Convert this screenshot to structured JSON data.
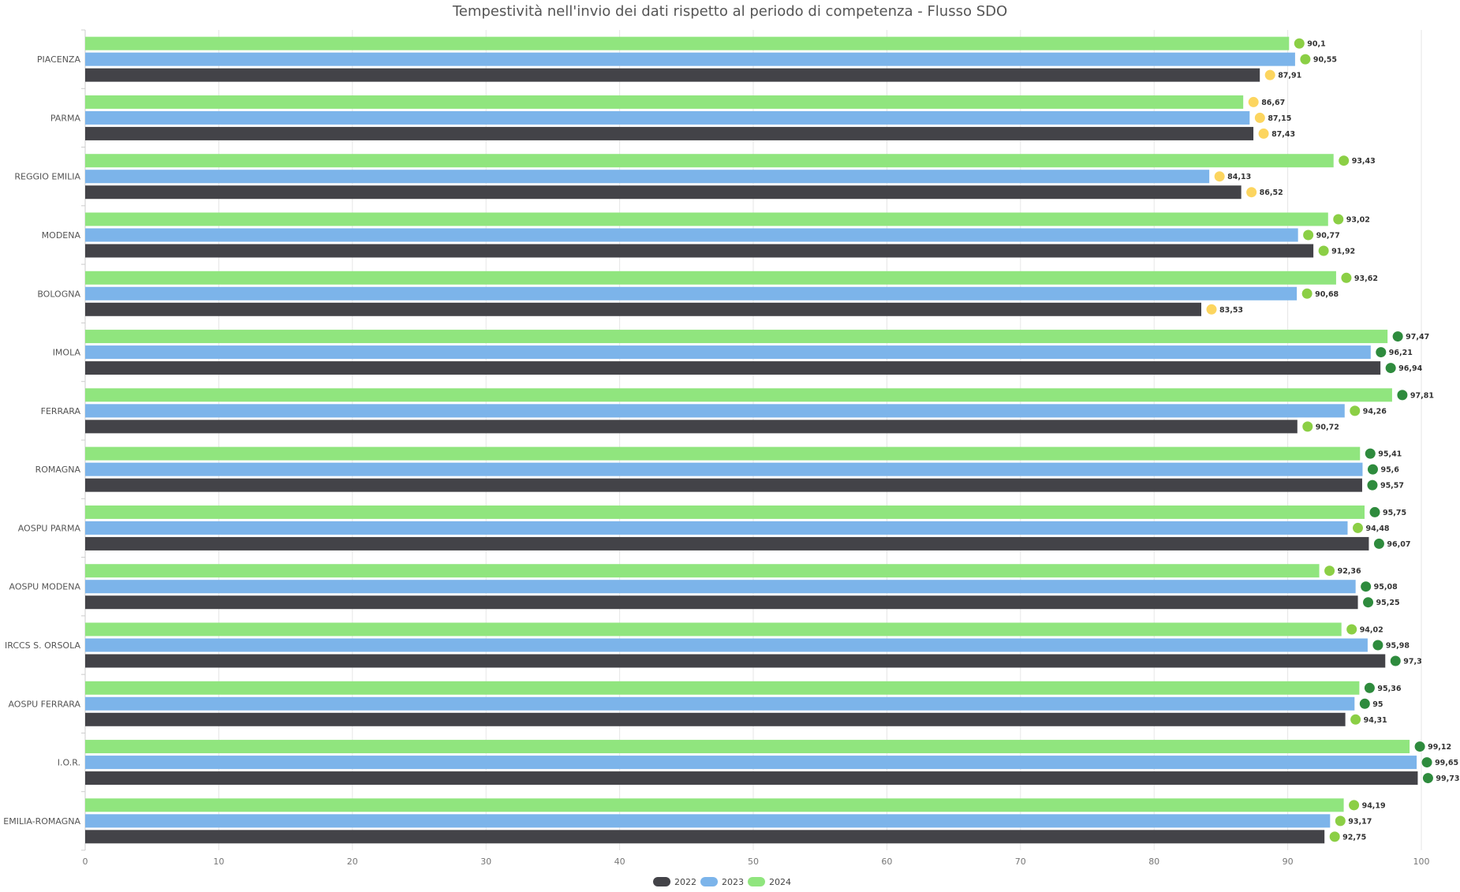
{
  "chart_data": {
    "type": "bar",
    "orientation": "horizontal",
    "title": "Tempestività nell'invio dei dati rispetto al periodo di competenza - Flusso SDO",
    "categories": [
      "PIACENZA",
      "PARMA",
      "REGGIO EMILIA",
      "MODENA",
      "BOLOGNA",
      "IMOLA",
      "FERRARA",
      "ROMAGNA",
      "AOSPU PARMA",
      "AOSPU MODENA",
      "IRCCS S. ORSOLA",
      "AOSPU FERRARA",
      "I.O.R.",
      "EMILIA-ROMAGNA"
    ],
    "series": [
      {
        "name": "2024",
        "color": "#90e57e",
        "values": [
          90.1,
          86.67,
          93.43,
          93.02,
          93.62,
          97.47,
          97.81,
          95.41,
          95.75,
          92.36,
          94.02,
          95.36,
          99.12,
          94.19
        ],
        "labels": [
          "90,1",
          "86,67",
          "93,43",
          "93,02",
          "93,62",
          "97,47",
          "97,81",
          "95,41",
          "95,75",
          "92,36",
          "94,02",
          "95,36",
          "99,12",
          "94,19"
        ]
      },
      {
        "name": "2023",
        "color": "#7cb4ea",
        "values": [
          90.55,
          87.15,
          84.13,
          90.77,
          90.68,
          96.21,
          94.26,
          95.6,
          94.48,
          95.08,
          95.98,
          95,
          99.65,
          93.17
        ],
        "labels": [
          "90,55",
          "87,15",
          "84,13",
          "90,77",
          "90,68",
          "96,21",
          "94,26",
          "95,6",
          "94,48",
          "95,08",
          "95,98",
          "95",
          "99,65",
          "93,17"
        ]
      },
      {
        "name": "2022",
        "color": "#434348",
        "values": [
          87.91,
          87.43,
          86.52,
          91.92,
          83.53,
          96.94,
          90.72,
          95.57,
          96.07,
          95.25,
          97.3,
          94.31,
          99.73,
          92.75
        ],
        "labels": [
          "87,91",
          "87,43",
          "86,52",
          "91,92",
          "83,53",
          "96,94",
          "90,72",
          "95,57",
          "96,07",
          "95,25",
          "97,3",
          "94,31",
          "99,73",
          "92,75"
        ]
      }
    ],
    "status_colors": {
      "low": "#fcd55f",
      "medium": "#8bcf45",
      "high": "#2e8b3d"
    },
    "xlim": [
      0,
      100
    ],
    "xticks": [
      0,
      10,
      20,
      30,
      40,
      50,
      60,
      70,
      80,
      90,
      100
    ],
    "legend": {
      "position": "bottom-center",
      "order": [
        "2022",
        "2023",
        "2024"
      ]
    },
    "grid": true
  }
}
